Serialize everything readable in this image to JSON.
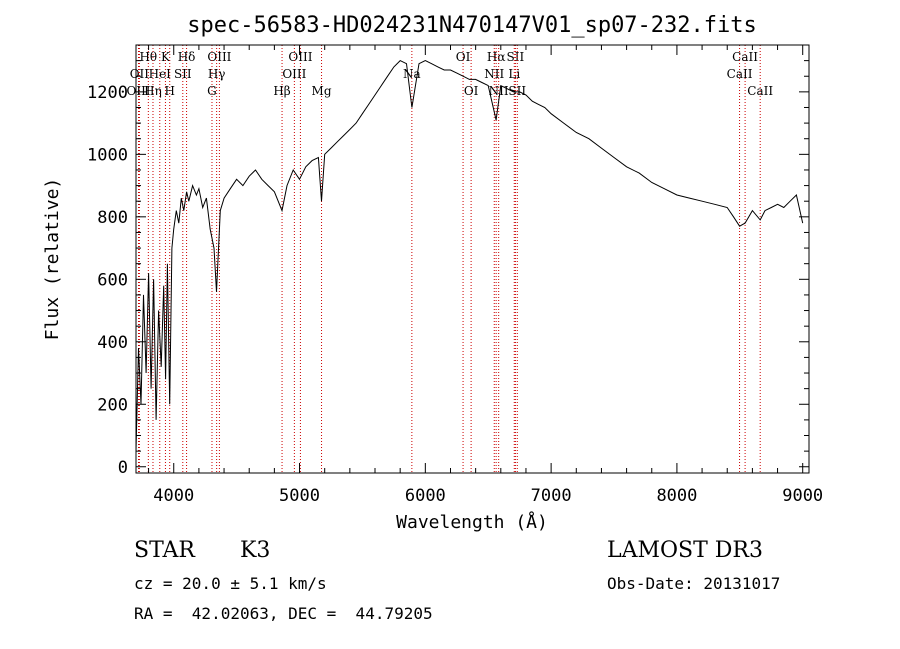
{
  "chart_data": {
    "type": "line",
    "title": "spec-56583-HD024231N470147V01_sp07-232.fits",
    "xlabel": "Wavelength (Å)",
    "ylabel": "Flux (relative)",
    "xlim": [
      3700,
      9050
    ],
    "ylim": [
      -20,
      1350
    ],
    "xticks": [
      4000,
      5000,
      6000,
      7000,
      8000,
      9000
    ],
    "yticks": [
      0,
      200,
      400,
      600,
      800,
      1000,
      1200
    ],
    "grid": false,
    "series": [
      {
        "x": [
          3700,
          3720,
          3740,
          3760,
          3780,
          3800,
          3820,
          3840,
          3860,
          3880,
          3900,
          3920,
          3935,
          3950,
          3968,
          3985,
          4000,
          4020,
          4040,
          4060,
          4080,
          4102,
          4120,
          4150,
          4180,
          4200,
          4230,
          4260,
          4290,
          4320,
          4340,
          4370,
          4400,
          4450,
          4500,
          4550,
          4600,
          4650,
          4700,
          4750,
          4800,
          4861,
          4900,
          4950,
          5000,
          5050,
          5100,
          5150,
          5175,
          5200,
          5250,
          5300,
          5350,
          5400,
          5450,
          5500,
          5550,
          5600,
          5650,
          5700,
          5750,
          5800,
          5850,
          5893,
          5950,
          6000,
          6050,
          6100,
          6150,
          6200,
          6250,
          6300,
          6350,
          6400,
          6450,
          6500,
          6563,
          6600,
          6650,
          6700,
          6750,
          6800,
          6850,
          6900,
          6950,
          7000,
          7100,
          7200,
          7300,
          7400,
          7500,
          7600,
          7700,
          7800,
          7900,
          8000,
          8100,
          8200,
          8300,
          8400,
          8450,
          8498,
          8542,
          8600,
          8662,
          8700,
          8750,
          8800,
          8850,
          8900,
          8950,
          9000
        ],
        "y": [
          50,
          380,
          200,
          550,
          300,
          620,
          250,
          600,
          150,
          500,
          320,
          580,
          280,
          650,
          200,
          700,
          760,
          820,
          780,
          860,
          820,
          880,
          850,
          900,
          870,
          890,
          830,
          860,
          760,
          700,
          560,
          820,
          860,
          890,
          920,
          900,
          930,
          950,
          920,
          900,
          880,
          820,
          900,
          950,
          920,
          960,
          980,
          990,
          850,
          1000,
          1020,
          1040,
          1060,
          1080,
          1100,
          1130,
          1160,
          1190,
          1220,
          1250,
          1280,
          1300,
          1290,
          1150,
          1290,
          1300,
          1290,
          1280,
          1270,
          1270,
          1260,
          1250,
          1240,
          1240,
          1230,
          1220,
          1110,
          1220,
          1210,
          1200,
          1200,
          1190,
          1170,
          1160,
          1150,
          1130,
          1100,
          1070,
          1050,
          1020,
          990,
          960,
          940,
          910,
          890,
          870,
          860,
          850,
          840,
          830,
          800,
          770,
          780,
          820,
          790,
          820,
          830,
          840,
          830,
          850,
          870,
          780
        ]
      }
    ],
    "spectral_lines": [
      {
        "label": "Hθ",
        "wl": 3798,
        "row": 0
      },
      {
        "label": "OII",
        "wl": 3727,
        "row": 1
      },
      {
        "label": "OIII",
        "wl": 3720,
        "row": 2
      },
      {
        "label": "Hη",
        "wl": 3835,
        "row": 2
      },
      {
        "label": "HeI",
        "wl": 3889,
        "row": 1
      },
      {
        "label": "K",
        "wl": 3934,
        "row": 0
      },
      {
        "label": "H",
        "wl": 3968,
        "row": 2
      },
      {
        "label": "Hδ",
        "wl": 4102,
        "row": 0
      },
      {
        "label": "SII",
        "wl": 4072,
        "row": 1
      },
      {
        "label": "OIII",
        "wl": 4363,
        "row": 0
      },
      {
        "label": "Hγ",
        "wl": 4341,
        "row": 1
      },
      {
        "label": "G",
        "wl": 4304,
        "row": 2
      },
      {
        "label": "Hβ",
        "wl": 4861,
        "row": 2
      },
      {
        "label": "OIII",
        "wl": 5007,
        "row": 0
      },
      {
        "label": "OIII",
        "wl": 4959,
        "row": 1
      },
      {
        "label": "Mg",
        "wl": 5175,
        "row": 2
      },
      {
        "label": "Na",
        "wl": 5893,
        "row": 1
      },
      {
        "label": "OI",
        "wl": 6300,
        "row": 0
      },
      {
        "label": "OI",
        "wl": 6364,
        "row": 2
      },
      {
        "label": "Hα",
        "wl": 6563,
        "row": 0
      },
      {
        "label": "NII",
        "wl": 6548,
        "row": 1
      },
      {
        "label": "NII",
        "wl": 6583,
        "row": 2
      },
      {
        "label": "SII",
        "wl": 6716,
        "row": 0
      },
      {
        "label": "Li",
        "wl": 6707,
        "row": 1
      },
      {
        "label": "SII",
        "wl": 6731,
        "row": 2
      },
      {
        "label": "CaII",
        "wl": 8542,
        "row": 0
      },
      {
        "label": "CaII",
        "wl": 8498,
        "row": 1
      },
      {
        "label": "CaII",
        "wl": 8662,
        "row": 2
      }
    ]
  },
  "info": {
    "object_class": "STAR",
    "subclass": "K3",
    "redshift": "cz = 20.0 ± 5.1 km/s",
    "coords": "RA =  42.02063, DEC =  44.79205",
    "survey": "LAMOST DR3",
    "obs_date": "Obs-Date: 20131017"
  }
}
